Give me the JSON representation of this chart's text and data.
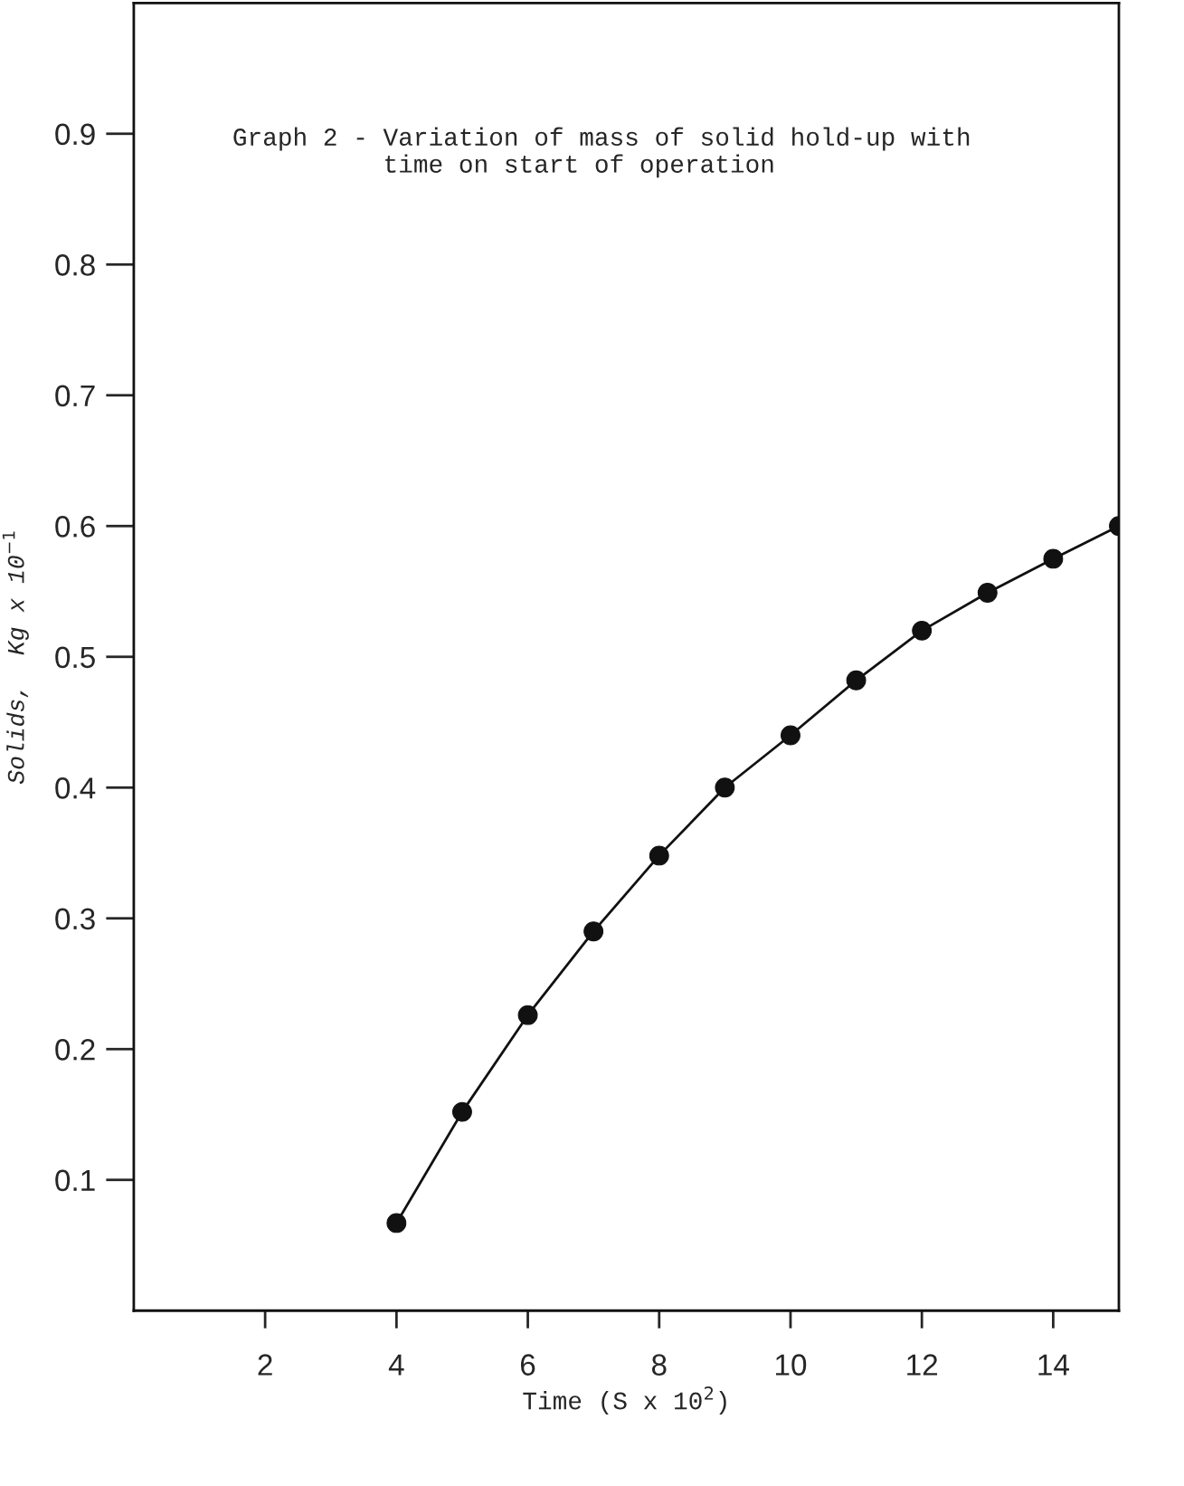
{
  "chart_data": {
    "type": "line",
    "title": "Graph 2 - Variation of mass of solid hold-up with\n          time on start of operation",
    "xlabel": "Time (S x 10$^{2}$)",
    "ylabel": "Solids,  Kg x 10$^{−1}$",
    "x": [
      4,
      5,
      6,
      7,
      8,
      9,
      10,
      11,
      12,
      13,
      14,
      15
    ],
    "series": [
      {
        "color": "#111111",
        "values": [
          0.067,
          0.152,
          0.226,
          0.29,
          0.348,
          0.4,
          0.44,
          0.482,
          0.52,
          0.549,
          0.575,
          0.6
        ]
      }
    ],
    "xlim": [
      0,
      15
    ],
    "ylim": [
      0,
      1.0
    ],
    "xticks": [
      2,
      4,
      6,
      8,
      10,
      12,
      14
    ],
    "yticks": [
      0.1,
      0.2,
      0.3,
      0.4,
      0.5,
      0.6,
      0.7,
      0.8,
      0.9
    ],
    "marker": "circle",
    "line_style": "solid",
    "grid": false,
    "legend": false
  }
}
